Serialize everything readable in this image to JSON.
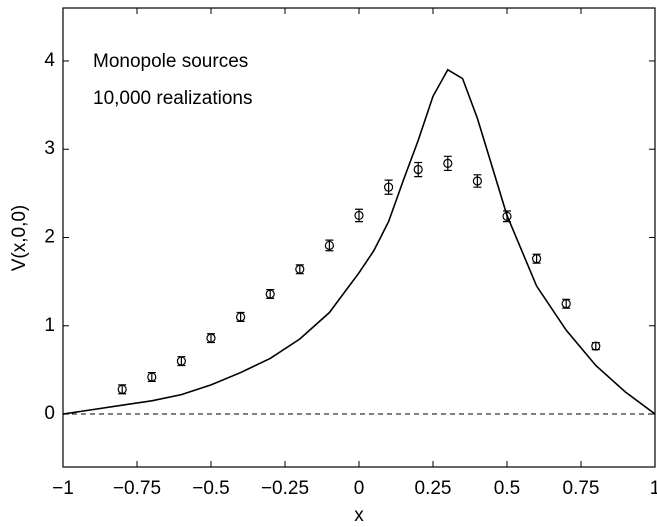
{
  "chart_data": {
    "type": "line",
    "xlabel": "x",
    "ylabel": "V(x,0,0)",
    "annotations": [
      "Monopole sources",
      "10,000 realizations"
    ],
    "xlim": [
      -1,
      1
    ],
    "ylim": [
      -0.6,
      4.6
    ],
    "xticks": [
      {
        "value": -1,
        "label": "−1"
      },
      {
        "value": -0.75,
        "label": "−0.75"
      },
      {
        "value": -0.5,
        "label": "−0.5"
      },
      {
        "value": -0.25,
        "label": "−0.25"
      },
      0,
      0.25,
      0.5,
      0.75,
      1
    ],
    "yticks": [
      0,
      1,
      2,
      3,
      4
    ],
    "hline": 0,
    "grid": false,
    "series": [
      {
        "type": "line",
        "color": "#000000",
        "x": [
          -1,
          -0.9,
          -0.8,
          -0.7,
          -0.6,
          -0.5,
          -0.4,
          -0.3,
          -0.2,
          -0.1,
          0,
          0.05,
          0.1,
          0.15,
          0.2,
          0.25,
          0.3,
          0.35,
          0.4,
          0.45,
          0.5,
          0.6,
          0.7,
          0.8,
          0.9,
          1
        ],
        "values": [
          0,
          0.05,
          0.1,
          0.15,
          0.22,
          0.33,
          0.47,
          0.63,
          0.85,
          1.15,
          1.6,
          1.85,
          2.18,
          2.65,
          3.1,
          3.6,
          3.9,
          3.8,
          3.35,
          2.8,
          2.25,
          1.45,
          0.95,
          0.55,
          0.25,
          0
        ]
      },
      {
        "type": "errorbar",
        "color": "#000000",
        "x": [
          -0.8,
          -0.7,
          -0.6,
          -0.5,
          -0.4,
          -0.3,
          -0.2,
          -0.1,
          0,
          0.1,
          0.2,
          0.3,
          0.4,
          0.5,
          0.6,
          0.7,
          0.8
        ],
        "values": [
          0.28,
          0.42,
          0.6,
          0.86,
          1.1,
          1.36,
          1.64,
          1.91,
          2.25,
          2.57,
          2.77,
          2.84,
          2.64,
          2.24,
          1.76,
          1.25,
          0.77
        ],
        "errors": [
          0.05,
          0.05,
          0.05,
          0.05,
          0.05,
          0.05,
          0.05,
          0.06,
          0.07,
          0.08,
          0.08,
          0.08,
          0.07,
          0.06,
          0.05,
          0.05,
          0.04
        ]
      }
    ]
  }
}
